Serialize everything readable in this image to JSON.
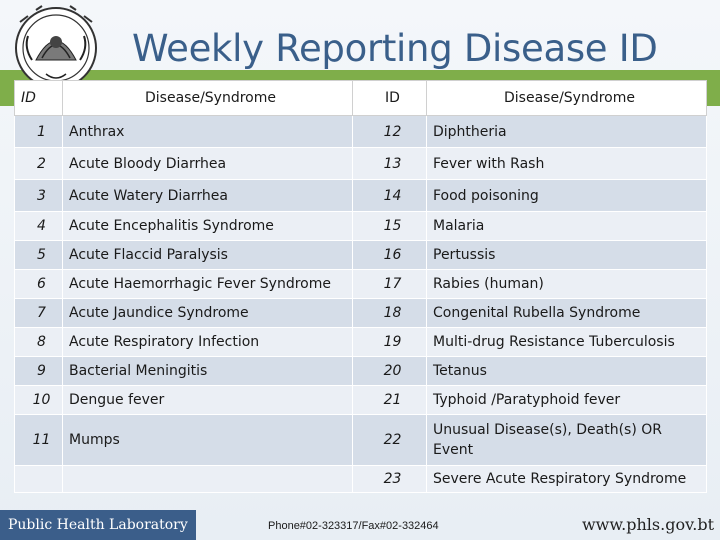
{
  "slide": {
    "title": "Weekly Reporting Disease ID",
    "logo_icon": "bhutan-emblem-icon",
    "accent_color": "#7fae4a",
    "title_color": "#3a5f8a"
  },
  "table": {
    "headers": [
      "ID",
      "Disease/Syndrome",
      "ID",
      "Disease/Syndrome"
    ],
    "rows": [
      {
        "id1": "1",
        "name1": "Anthrax",
        "id2": "12",
        "name2": "Diphtheria"
      },
      {
        "id1": "2",
        "name1": "Acute Bloody Diarrhea",
        "id2": "13",
        "name2": "Fever with Rash"
      },
      {
        "id1": "3",
        "name1": "Acute Watery Diarrhea",
        "id2": "14",
        "name2": "Food poisoning"
      },
      {
        "id1": "4",
        "name1": "Acute Encephalitis Syndrome",
        "id2": "15",
        "name2": "Malaria"
      },
      {
        "id1": "5",
        "name1": "Acute Flaccid Paralysis",
        "id2": "16",
        "name2": "Pertussis"
      },
      {
        "id1": "6",
        "name1": "Acute Haemorrhagic Fever Syndrome",
        "id2": "17",
        "name2": "Rabies (human)"
      },
      {
        "id1": "7",
        "name1": "Acute Jaundice Syndrome",
        "id2": "18",
        "name2": "Congenital Rubella Syndrome"
      },
      {
        "id1": "8",
        "name1": "Acute Respiratory Infection",
        "id2": "19",
        "name2": "Multi-drug Resistance Tuberculosis"
      },
      {
        "id1": "9",
        "name1": "Bacterial Meningitis",
        "id2": "20",
        "name2": "Tetanus"
      },
      {
        "id1": "10",
        "name1": "Dengue fever",
        "id2": "21",
        "name2": "Typhoid /Paratyphoid fever"
      },
      {
        "id1": "11",
        "name1": "Mumps",
        "id2": "22",
        "name2": "Unusual Disease(s), Death(s) OR Event"
      },
      {
        "id1": "",
        "name1": "",
        "id2": "23",
        "name2": "Severe Acute Respiratory Syndrome"
      }
    ]
  },
  "footer": {
    "org": "Public Health Laboratory",
    "phone": "Phone#02-323317/Fax#02-332464",
    "url": "www.phls.gov.bt"
  }
}
